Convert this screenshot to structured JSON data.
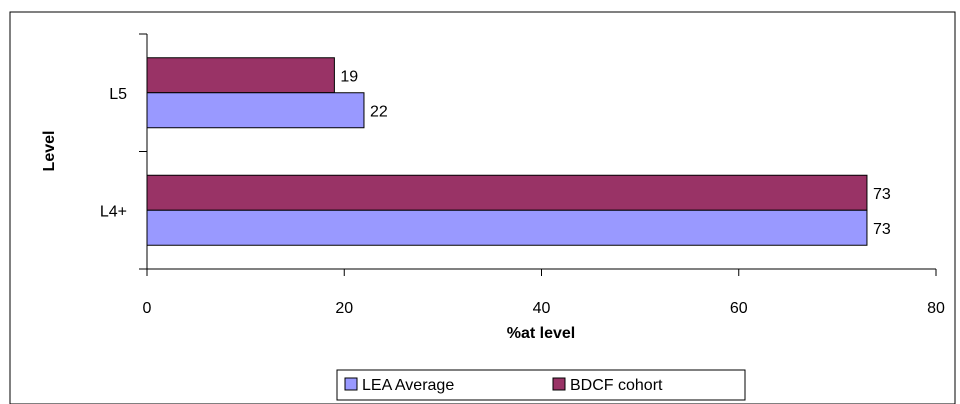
{
  "chart_data": {
    "type": "bar",
    "orientation": "horizontal",
    "categories": [
      "L5",
      "L4+"
    ],
    "series": [
      {
        "name": "BDCF cohort",
        "values": [
          19,
          73
        ],
        "color": "#993366"
      },
      {
        "name": "LEA Average",
        "values": [
          22,
          73
        ],
        "color": "#9999ff"
      }
    ],
    "legend_order": [
      "LEA Average",
      "BDCF cohort"
    ],
    "xlabel": "%at level",
    "ylabel": "Level",
    "xlim": [
      0,
      80
    ],
    "x_ticks": [
      0,
      20,
      40,
      60,
      80
    ],
    "grid": false,
    "legend_position": "bottom"
  }
}
